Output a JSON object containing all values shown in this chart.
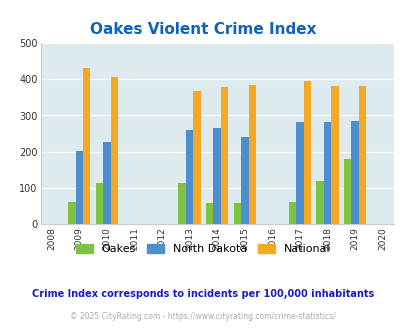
{
  "title": "Oakes Violent Crime Index",
  "years": [
    2009,
    2010,
    2013,
    2014,
    2015,
    2017,
    2018,
    2019
  ],
  "oakes": [
    63,
    115,
    113,
    60,
    60,
    63,
    120,
    180
  ],
  "north_dakota": [
    202,
    228,
    260,
    265,
    240,
    281,
    281,
    284
  ],
  "national": [
    432,
    406,
    367,
    378,
    384,
    394,
    381,
    381
  ],
  "oakes_color": "#7dc241",
  "nd_color": "#4d8fcc",
  "national_color": "#f5a823",
  "bg_color": "#ddeaee",
  "title_color": "#1060c0",
  "footer_note": "Crime Index corresponds to incidents per 100,000 inhabitants",
  "copyright": "© 2025 CityRating.com - https://www.cityrating.com/crime-statistics/",
  "ylim": [
    0,
    500
  ],
  "xlim": [
    2007.6,
    2020.4
  ],
  "yticks": [
    0,
    100,
    200,
    300,
    400,
    500
  ],
  "xticks": [
    2008,
    2009,
    2010,
    2011,
    2012,
    2013,
    2014,
    2015,
    2016,
    2017,
    2018,
    2019,
    2020
  ],
  "bar_width": 0.27
}
